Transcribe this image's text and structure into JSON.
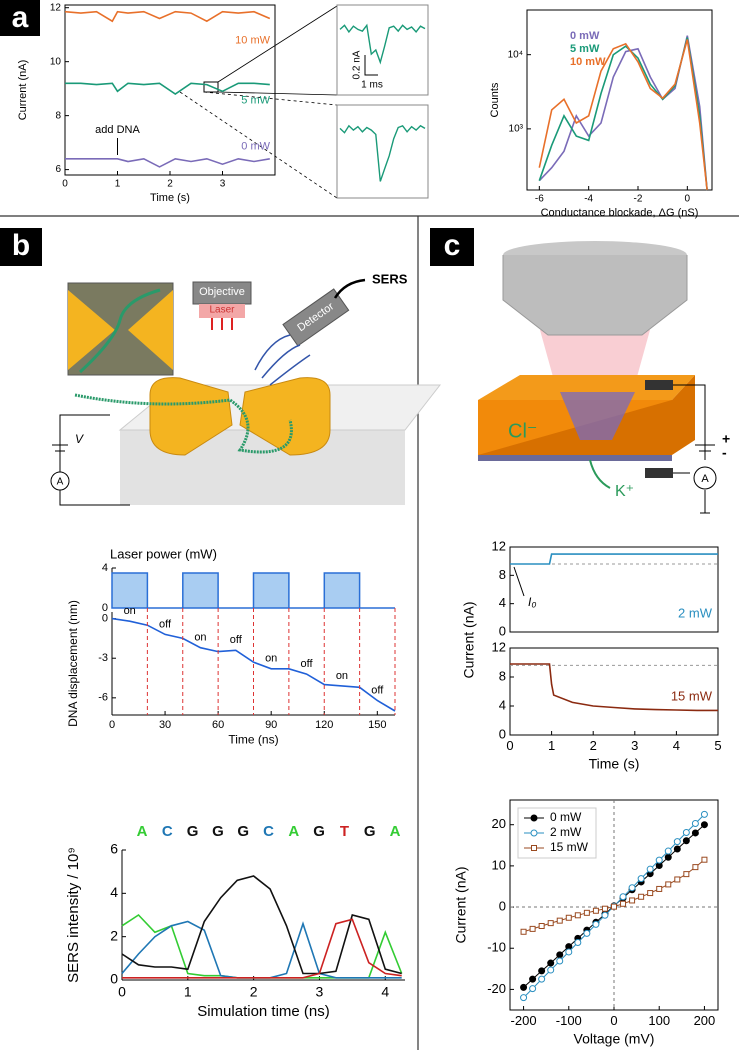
{
  "panel_labels": [
    "a",
    "b",
    "c"
  ],
  "diagram_b": {
    "objective": "Objective",
    "laser": "Laser",
    "detector": "Detector",
    "output": "SERS",
    "voltage": "V",
    "ammeter": "A"
  },
  "diagram_c": {
    "anion": "Cl⁻",
    "cation": "K⁺",
    "ammeter": "A",
    "plus": "+",
    "minus": "-"
  },
  "chart_data": [
    {
      "type": "line",
      "xlabel": "Time (s)",
      "ylabel": "Current (nA)",
      "x": [
        0,
        0.3,
        0.6,
        0.9,
        1.0,
        1.2,
        1.5,
        1.8,
        2.1,
        2.4,
        2.7,
        3.0,
        3.3,
        3.6,
        3.9
      ],
      "xlim": [
        0,
        4
      ],
      "ylim": [
        5.8,
        12.1
      ],
      "xticks": [
        0,
        1,
        2,
        3
      ],
      "yticks": [
        6,
        8,
        10,
        12
      ],
      "series": [
        {
          "name": "10 mW",
          "color": "#e8702a",
          "values": [
            11.85,
            11.8,
            11.85,
            11.5,
            11.85,
            11.8,
            11.85,
            11.6,
            11.85,
            11.8,
            11.5,
            11.85,
            11.8,
            11.85,
            11.6
          ]
        },
        {
          "name": "5 mW",
          "color": "#1a9a78",
          "values": [
            9.2,
            9.2,
            9.15,
            9.2,
            8.9,
            9.2,
            9.15,
            9.2,
            8.8,
            9.2,
            9.15,
            8.9,
            9.2,
            9.2,
            9.15
          ]
        },
        {
          "name": "0 mW",
          "color": "#7a6bb8",
          "values": [
            6.4,
            6.4,
            6.4,
            6.4,
            6.4,
            6.3,
            6.4,
            6.1,
            6.4,
            6.3,
            6.4,
            6.2,
            6.4,
            6.3,
            6.4
          ]
        }
      ],
      "annotations": [
        {
          "text": "add DNA",
          "x": 1
        }
      ]
    },
    {
      "type": "line",
      "ylim": [
        -0.7,
        0.2
      ],
      "scale_y": "0.2 nA",
      "scale_x": "1 ms",
      "series": [
        {
          "color": "#1a9a78",
          "values": [
            0.0,
            0.05,
            -0.03,
            0.04,
            0.0,
            -0.02,
            0.05,
            -0.3,
            -0.25,
            -0.4,
            -0.2,
            0.02,
            0.04,
            -0.02,
            0.05,
            0.0,
            0.03,
            -0.03,
            0.04,
            0.01
          ]
        },
        {
          "color": "#1a9a78",
          "values": [
            0.02,
            -0.03,
            0.05,
            0.0,
            0.04,
            -0.02,
            0.03,
            0.0,
            -0.05,
            -0.6,
            -0.45,
            -0.3,
            -0.1,
            0.03,
            0.05,
            -0.02,
            0.04,
            0.0,
            0.05,
            0.02
          ]
        }
      ]
    },
    {
      "type": "line",
      "xlabel": "Conductance blockade, ΔG (nS)",
      "ylabel": "Counts",
      "log_y": true,
      "x": [
        -6,
        -5.5,
        -5,
        -4.5,
        -4,
        -3.5,
        -3,
        -2.5,
        -2,
        -1.5,
        -1,
        -0.5,
        0,
        0.5,
        0.8
      ],
      "xlim": [
        -6.5,
        1
      ],
      "ylim": [
        150,
        40000
      ],
      "xticks": [
        -6,
        -4,
        -2,
        0
      ],
      "yticks": [
        {
          "value": 1000,
          "label": "10³"
        },
        {
          "value": 10000,
          "label": "10⁴"
        }
      ],
      "series": [
        {
          "name": "0 mW",
          "color": "#7a6bb8",
          "values": [
            200,
            300,
            500,
            1500,
            800,
            1200,
            5000,
            11000,
            12000,
            5000,
            2500,
            3500,
            18000,
            2000,
            150
          ]
        },
        {
          "name": "5 mW",
          "color": "#1a9a78",
          "values": [
            200,
            600,
            1500,
            800,
            700,
            3000,
            10000,
            13000,
            9000,
            4000,
            2500,
            3800,
            17000,
            1500,
            150
          ]
        },
        {
          "name": "10 mW",
          "color": "#e8702a",
          "values": [
            300,
            1800,
            2500,
            1200,
            1500,
            6000,
            12000,
            14000,
            8000,
            3500,
            2600,
            4000,
            16000,
            1200,
            150
          ]
        }
      ]
    },
    {
      "type": "area",
      "title": "Laser power (mW)",
      "x": [
        0,
        20,
        20,
        40,
        40,
        60,
        60,
        80,
        80,
        100,
        100,
        120,
        120,
        140,
        140,
        160
      ],
      "xlim": [
        0,
        160
      ],
      "ylim": [
        0,
        4
      ],
      "yticks": [
        0,
        4
      ],
      "series": [
        {
          "color": "#2a6fd6",
          "fill": "#a9cdf2",
          "values": [
            3.5,
            3.5,
            0,
            0,
            3.5,
            3.5,
            0,
            0,
            3.5,
            3.5,
            0,
            0,
            3.5,
            3.5,
            0,
            0
          ]
        }
      ]
    },
    {
      "type": "line",
      "xlabel": "Time (ns)",
      "ylabel": "DNA displacement (nm)",
      "x": [
        0,
        10,
        20,
        30,
        40,
        50,
        60,
        70,
        80,
        90,
        100,
        110,
        120,
        130,
        140,
        150,
        160
      ],
      "xlim": [
        0,
        160
      ],
      "ylim": [
        -7.3,
        0.5
      ],
      "xticks": [
        0,
        30,
        60,
        90,
        120,
        150
      ],
      "yticks": [
        -6,
        -3,
        0
      ],
      "series": [
        {
          "color": "#2060d8",
          "values": [
            0,
            -0.2,
            -0.5,
            -1.2,
            -1.5,
            -2.2,
            -2.5,
            -2.4,
            -3.3,
            -3.8,
            -3.8,
            -4.2,
            -5.0,
            -5.1,
            -5.2,
            -6.2,
            -7.0
          ]
        }
      ],
      "phase_bounds": [
        20,
        40,
        60,
        80,
        100,
        120,
        140,
        160
      ],
      "phases": [
        "on",
        "off",
        "on",
        "off",
        "on",
        "off",
        "on",
        "off"
      ]
    },
    {
      "type": "line",
      "xlabel": "Simulation time (ns)",
      "ylabel": "SERS intensity / 10⁹",
      "x": [
        0,
        0.25,
        0.5,
        0.75,
        1,
        1.25,
        1.5,
        1.75,
        2,
        2.25,
        2.5,
        2.75,
        3,
        3.25,
        3.5,
        3.75,
        4,
        4.25
      ],
      "xlim": [
        0,
        4.3
      ],
      "ylim": [
        0,
        6
      ],
      "xticks": [
        0,
        1,
        2,
        3,
        4
      ],
      "yticks": [
        0,
        2,
        4,
        6
      ],
      "series": [
        {
          "color": "#33cc33",
          "values": [
            2.5,
            3,
            2.2,
            2.5,
            0.3,
            0.2,
            0.2,
            0.1,
            0.1,
            0.1,
            0.1,
            0.1,
            0.1,
            0.1,
            0.1,
            0.1,
            2.2,
            0.3
          ]
        },
        {
          "color": "#1f77b4",
          "values": [
            0.3,
            1.2,
            2,
            2.5,
            2.7,
            2.3,
            0.2,
            0.1,
            0.1,
            0.1,
            0.3,
            2.6,
            0.3,
            0.1,
            0.1,
            0.1,
            0.1,
            0.1
          ]
        },
        {
          "color": "#111111",
          "values": [
            1.2,
            0.7,
            0.6,
            0.6,
            0.5,
            2.7,
            3.8,
            4.6,
            4.8,
            4.2,
            2.5,
            0.3,
            0.3,
            0.4,
            3,
            2.8,
            0.5,
            0.3
          ]
        },
        {
          "color": "#cc2222",
          "values": [
            0.1,
            0.1,
            0.1,
            0.1,
            0.1,
            0.1,
            0.1,
            0.1,
            0.1,
            0.1,
            0.1,
            0.1,
            0.3,
            2.6,
            2.8,
            0.8,
            0.3,
            0.2
          ]
        }
      ],
      "sequence": [
        {
          "label": "A",
          "color": "#33cc33"
        },
        {
          "label": "C",
          "color": "#1f77b4"
        },
        {
          "label": "G",
          "color": "#111111"
        },
        {
          "label": "G",
          "color": "#111111"
        },
        {
          "label": "G",
          "color": "#111111"
        },
        {
          "label": "C",
          "color": "#1f77b4"
        },
        {
          "label": "A",
          "color": "#33cc33"
        },
        {
          "label": "G",
          "color": "#111111"
        },
        {
          "label": "T",
          "color": "#cc2222"
        },
        {
          "label": "G",
          "color": "#111111"
        },
        {
          "label": "A",
          "color": "#33cc33"
        }
      ]
    },
    {
      "type": "line",
      "x": [
        0,
        0.5,
        0.95,
        1.0,
        1.05,
        1.5,
        2,
        2.5,
        3,
        3.5,
        4,
        4.5,
        5
      ],
      "xlim": [
        0,
        5
      ],
      "ylim": [
        0,
        12
      ],
      "yticks": [
        0,
        4,
        8,
        12
      ],
      "baseline": 9.6,
      "series": [
        {
          "color": "#2a8fc0",
          "values": [
            9.6,
            9.6,
            9.6,
            11,
            11,
            11,
            11,
            11,
            11,
            11,
            11,
            11,
            11
          ]
        }
      ],
      "label": "2 mW",
      "baseline_label": "I₀"
    },
    {
      "type": "line",
      "xlabel": "Time (s)",
      "ylabel": "Current (nA)",
      "x": [
        0,
        0.5,
        0.95,
        1.0,
        1.05,
        1.5,
        2,
        2.5,
        3,
        3.5,
        4,
        4.5,
        5
      ],
      "xlim": [
        0,
        5
      ],
      "ylim": [
        0,
        12
      ],
      "xticks": [
        0,
        1,
        2,
        3,
        4,
        5
      ],
      "yticks": [
        0,
        4,
        8,
        12
      ],
      "baseline": 9.6,
      "series": [
        {
          "color": "#8b2a10",
          "values": [
            9.8,
            9.8,
            9.8,
            7,
            5.5,
            4.5,
            4,
            3.8,
            3.6,
            3.5,
            3.45,
            3.4,
            3.4
          ]
        }
      ],
      "label": "15 mW"
    },
    {
      "type": "line",
      "xlabel": "Voltage (mV)",
      "ylabel": "Current (nA)",
      "legend": "upper-left",
      "x": [
        -200,
        -180,
        -160,
        -140,
        -120,
        -100,
        -80,
        -60,
        -40,
        -20,
        0,
        20,
        40,
        60,
        80,
        100,
        120,
        140,
        160,
        180,
        200
      ],
      "xlim": [
        -230,
        230
      ],
      "ylim": [
        -25,
        26
      ],
      "xticks": [
        -200,
        -100,
        0,
        100,
        200
      ],
      "yticks": [
        -20,
        -10,
        0,
        10,
        20
      ],
      "series": [
        {
          "name": "0 mW",
          "color": "#000000",
          "marker": "circle",
          "values": [
            -19.5,
            -17.5,
            -15.5,
            -13.6,
            -11.6,
            -9.6,
            -7.6,
            -5.6,
            -3.7,
            -1.7,
            0.3,
            2.2,
            4.2,
            6.1,
            8.1,
            10.1,
            12.1,
            14.1,
            16.1,
            18.0,
            20.0
          ]
        },
        {
          "name": "2 mW",
          "color": "#2a8fc0",
          "marker": "open-circle",
          "values": [
            -22,
            -19.8,
            -17.5,
            -15.3,
            -13.1,
            -10.9,
            -8.6,
            -6.4,
            -4.2,
            -2.0,
            0.2,
            2.5,
            4.7,
            6.9,
            9.2,
            11.4,
            13.6,
            15.9,
            18.1,
            20.3,
            22.5
          ]
        },
        {
          "name": "15 mW",
          "color": "#9a4a20",
          "marker": "open-square",
          "values": [
            -6,
            -5.3,
            -4.6,
            -3.9,
            -3.3,
            -2.6,
            -2.0,
            -1.4,
            -0.9,
            -0.4,
            0.1,
            0.8,
            1.6,
            2.5,
            3.4,
            4.4,
            5.5,
            6.7,
            8.0,
            9.7,
            11.5
          ]
        }
      ]
    }
  ]
}
